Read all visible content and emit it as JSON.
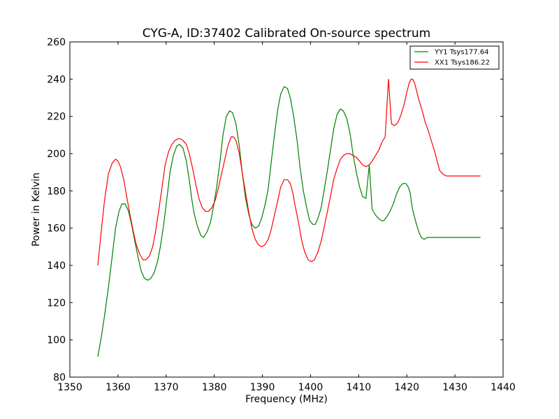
{
  "chart_data": {
    "type": "line",
    "title": "CYG-A, ID:37402 Calibrated On-source spectrum",
    "xlabel": "Frequency (MHz)",
    "ylabel": "Power in Kelvin",
    "xlim": [
      1350,
      1440
    ],
    "ylim": [
      80,
      260
    ],
    "xticks": [
      1350,
      1360,
      1370,
      1380,
      1390,
      1400,
      1410,
      1420,
      1430,
      1440
    ],
    "yticks": [
      80,
      100,
      120,
      140,
      160,
      180,
      200,
      220,
      240,
      260
    ],
    "grid": false,
    "legend_position": "top-right",
    "series": [
      {
        "name": "YY1 Tsys177.64",
        "color": "#008000",
        "x": [
          1355.8,
          1356.5,
          1357.2,
          1358.0,
          1358.8,
          1359.5,
          1360.2,
          1360.8,
          1361.5,
          1362.2,
          1362.8,
          1363.5,
          1364.2,
          1364.8,
          1365.5,
          1366.2,
          1366.8,
          1367.5,
          1368.2,
          1368.8,
          1369.5,
          1370.2,
          1370.8,
          1371.5,
          1372.2,
          1372.8,
          1373.5,
          1374.2,
          1374.8,
          1375.3,
          1375.8,
          1376.5,
          1377.2,
          1377.8,
          1378.5,
          1379.2,
          1379.8,
          1380.5,
          1381.2,
          1381.8,
          1382.5,
          1383.2,
          1383.8,
          1384.5,
          1385.2,
          1385.8,
          1386.5,
          1387.2,
          1387.8,
          1388.5,
          1389.2,
          1389.8,
          1390.5,
          1391.2,
          1391.8,
          1392.5,
          1393.2,
          1393.8,
          1394.5,
          1395.2,
          1395.8,
          1396.5,
          1397.2,
          1397.8,
          1398.5,
          1399.2,
          1399.8,
          1400.5,
          1401.0,
          1401.5,
          1402.2,
          1402.8,
          1403.5,
          1404.2,
          1404.8,
          1405.5,
          1406.2,
          1406.8,
          1407.5,
          1408.2,
          1408.8,
          1409.5,
          1410.2,
          1410.8,
          1411.5,
          1412.2,
          1412.8,
          1413.5,
          1414.2,
          1414.8,
          1415.2,
          1415.8,
          1416.5,
          1417.2,
          1417.8,
          1418.5,
          1419.2,
          1419.8,
          1420.3,
          1420.7,
          1420.9,
          1421.2,
          1421.6,
          1422.0,
          1422.5,
          1423.0,
          1423.6,
          1424.2,
          1424.8,
          1425.5,
          1426.2,
          1426.8,
          1427.5,
          1428.2,
          1428.8,
          1429.5,
          1430.2,
          1430.8,
          1431.5,
          1432.2,
          1432.8,
          1433.5,
          1434.2,
          1434.8,
          1435.3
        ],
        "y": [
          91,
          101,
          113,
          128,
          145,
          160,
          169,
          173,
          173,
          169,
          162,
          153,
          144,
          137,
          133,
          132,
          133,
          136,
          142,
          150,
          162,
          177,
          190,
          199,
          204,
          205,
          203,
          196,
          186,
          176,
          168,
          161,
          156,
          155,
          158,
          163,
          171,
          182,
          196,
          210,
          220,
          223,
          222,
          216,
          204,
          190,
          176,
          167,
          162,
          160,
          161,
          165,
          172,
          181,
          195,
          210,
          224,
          232,
          236,
          235,
          230,
          220,
          207,
          193,
          180,
          171,
          164,
          162,
          162,
          165,
          171,
          180,
          191,
          203,
          213,
          221,
          224,
          223,
          219,
          211,
          200,
          190,
          182,
          177,
          176,
          194,
          170,
          167,
          165,
          164,
          164,
          166,
          169,
          173,
          178,
          182,
          184,
          184,
          182,
          179,
          175,
          170,
          166,
          162,
          158,
          155,
          154,
          155,
          155,
          155,
          155,
          155,
          155,
          155,
          155,
          155,
          155,
          155,
          155,
          155,
          155,
          155,
          155,
          155,
          155
        ]
      },
      {
        "name": "XX1 Tsys186.22",
        "color": "#ff0000",
        "x": [
          1355.8,
          1356.5,
          1357.2,
          1358.0,
          1358.8,
          1359.5,
          1360.0,
          1360.5,
          1361.2,
          1361.8,
          1362.5,
          1363.2,
          1363.8,
          1364.5,
          1365.2,
          1365.8,
          1366.5,
          1367.2,
          1367.8,
          1368.5,
          1369.2,
          1369.8,
          1370.5,
          1371.2,
          1371.8,
          1372.5,
          1373.0,
          1373.5,
          1374.2,
          1374.8,
          1375.5,
          1376.2,
          1376.8,
          1377.5,
          1378.2,
          1378.8,
          1379.5,
          1380.2,
          1380.8,
          1381.5,
          1382.2,
          1382.8,
          1383.5,
          1384.0,
          1384.5,
          1385.2,
          1385.8,
          1386.5,
          1387.2,
          1387.8,
          1388.5,
          1389.2,
          1389.8,
          1390.5,
          1391.2,
          1391.8,
          1392.5,
          1393.2,
          1393.8,
          1394.5,
          1395.2,
          1395.8,
          1396.3,
          1396.8,
          1397.5,
          1398.2,
          1398.8,
          1399.5,
          1400.2,
          1400.8,
          1401.5,
          1402.2,
          1402.8,
          1403.5,
          1404.2,
          1404.8,
          1405.5,
          1406.2,
          1406.8,
          1407.5,
          1408.2,
          1408.8,
          1409.5,
          1410.2,
          1410.8,
          1411.5,
          1412.2,
          1412.8,
          1413.5,
          1414.2,
          1414.8,
          1415.5,
          1416.2,
          1416.8,
          1417.5,
          1418.2,
          1418.8,
          1419.5,
          1420.0,
          1420.5,
          1420.9,
          1421.2,
          1421.6,
          1422.0,
          1422.5,
          1423.2,
          1423.8,
          1424.5,
          1425.2,
          1425.8,
          1426.3,
          1426.8,
          1427.5,
          1428.2,
          1428.8,
          1429.5,
          1430.2,
          1430.8,
          1431.5,
          1432.2,
          1432.8,
          1433.5,
          1434.2,
          1434.8,
          1435.3
        ],
        "y": [
          140,
          158,
          175,
          189,
          195,
          197,
          196,
          193,
          186,
          177,
          167,
          158,
          151,
          146,
          143,
          143,
          145,
          150,
          158,
          170,
          183,
          194,
          201,
          205,
          207,
          208,
          208,
          207,
          205,
          200,
          192,
          183,
          176,
          171,
          169,
          169,
          171,
          175,
          181,
          189,
          197,
          204,
          209,
          209,
          207,
          200,
          190,
          179,
          168,
          160,
          154,
          151,
          150,
          151,
          154,
          159,
          167,
          175,
          182,
          186,
          186,
          184,
          179,
          172,
          163,
          153,
          147,
          143,
          142,
          143,
          147,
          153,
          160,
          169,
          178,
          186,
          192,
          197,
          199,
          200,
          200,
          199,
          198,
          196,
          194,
          193,
          194,
          196,
          199,
          202,
          206,
          209,
          240,
          216,
          215,
          217,
          221,
          227,
          233,
          238,
          240,
          240,
          238,
          234,
          229,
          223,
          217,
          212,
          206,
          201,
          196,
          191,
          189,
          188,
          188,
          188,
          188,
          188,
          188,
          188,
          188,
          188,
          188,
          188,
          188
        ]
      }
    ]
  }
}
